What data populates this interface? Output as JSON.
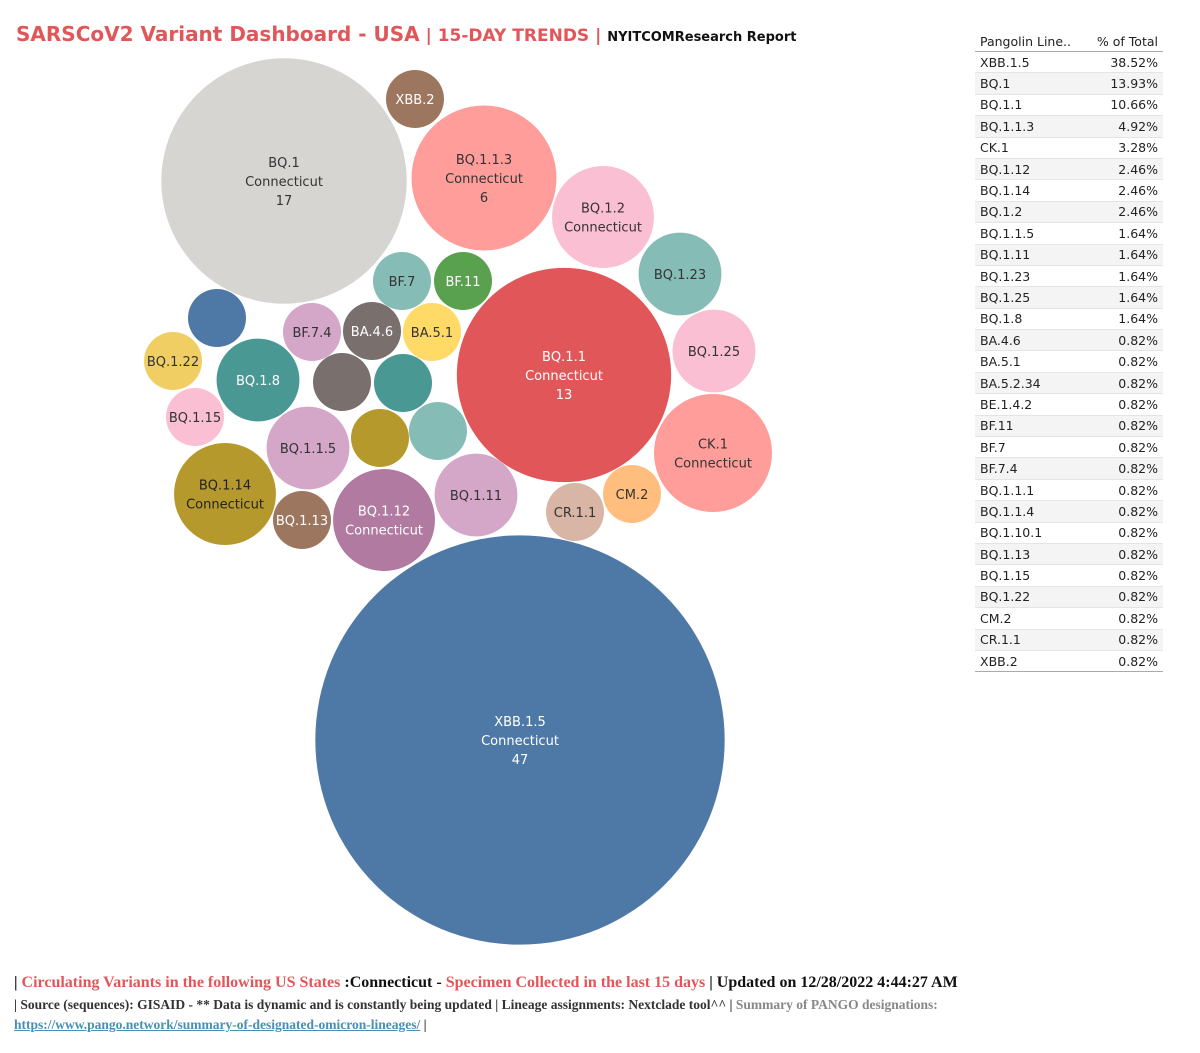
{
  "header": {
    "title": "SARSCoV2 Variant Dashboard - USA",
    "sep1": " | ",
    "trend": "15-DAY TRENDS",
    "sep2": " | ",
    "report": "NYITCOMResearch Report"
  },
  "colors": {
    "blue": "#4e79a7",
    "red": "#e15759",
    "salmon": "#ff9d9a",
    "pink": "#fabfd2",
    "teal": "#499894",
    "light_teal": "#86bcb6",
    "grey_beige": "#d7d5d2",
    "brown": "#9d7660",
    "olive": "#b6992d",
    "yellow": "#f1ce63",
    "lavender": "#d4a6c8",
    "mauve": "#b07aa1",
    "green": "#59a14f",
    "gold": "#ffda66",
    "dark_grey": "#79706e",
    "peach": "#ffbe7d",
    "tan": "#d8b5a5"
  },
  "chart_data": {
    "type": "bubble",
    "state": "Connecticut",
    "bubbles": [
      {
        "lineage": "XBB.1.5",
        "state": "Connecticut",
        "count": 47,
        "color": "#4e79a7",
        "text_color": "#ffffff"
      },
      {
        "lineage": "BQ.1",
        "state": "Connecticut",
        "count": 17,
        "color": "#d7d5d2",
        "text_color": "#333333"
      },
      {
        "lineage": "BQ.1.1",
        "state": "Connecticut",
        "count": 13,
        "color": "#e15759",
        "text_color": "#ffffff"
      },
      {
        "lineage": "BQ.1.1.3",
        "state": "Connecticut",
        "count": 6,
        "color": "#ff9d9a",
        "text_color": "#333333"
      },
      {
        "lineage": "CK.1",
        "state": "Connecticut",
        "count": 4,
        "color": "#ff9d9a",
        "text_color": "#333333"
      },
      {
        "lineage": "BQ.1.2",
        "state": "Connecticut",
        "count": 3,
        "color": "#fabfd2",
        "text_color": "#333333"
      },
      {
        "lineage": "BQ.1.12",
        "state": "Connecticut",
        "count": 3,
        "color": "#b07aa1",
        "text_color": "#ffffff"
      },
      {
        "lineage": "BQ.1.14",
        "state": "Connecticut",
        "count": 3,
        "color": "#b6992d",
        "text_color": "#222222"
      },
      {
        "lineage": "BQ.1.23",
        "count": 2,
        "color": "#86bcb6",
        "text_color": "#333333"
      },
      {
        "lineage": "BQ.1.25",
        "count": 2,
        "color": "#fabfd2",
        "text_color": "#333333"
      },
      {
        "lineage": "BQ.1.8",
        "count": 2,
        "color": "#499894",
        "text_color": "#ffffff"
      },
      {
        "lineage": "BQ.1.1.5",
        "count": 2,
        "color": "#d4a6c8",
        "text_color": "#333333"
      },
      {
        "lineage": "BQ.1.11",
        "count": 2,
        "color": "#d4a6c8",
        "text_color": "#333333"
      },
      {
        "lineage": "XBB.2",
        "count": 1,
        "color": "#9d7660",
        "text_color": "#ffffff"
      },
      {
        "lineage": "BF.7",
        "count": 1,
        "color": "#86bcb6",
        "text_color": "#333333"
      },
      {
        "lineage": "BF.11",
        "count": 1,
        "color": "#59a14f",
        "text_color": "#ffffff"
      },
      {
        "lineage": "BF.7.4",
        "count": 1,
        "color": "#d4a6c8",
        "text_color": "#333333"
      },
      {
        "lineage": "BA.4.6",
        "count": 1,
        "color": "#79706e",
        "text_color": "#ffffff"
      },
      {
        "lineage": "BA.5.1",
        "count": 1,
        "color": "#ffda66",
        "text_color": "#333333"
      },
      {
        "lineage": "BQ.1.22",
        "count": 1,
        "color": "#f1ce63",
        "text_color": "#333333"
      },
      {
        "lineage": "BQ.1.15",
        "count": 1,
        "color": "#fabfd2",
        "text_color": "#333333"
      },
      {
        "lineage": "BQ.1.13",
        "count": 1,
        "color": "#9d7660",
        "text_color": "#ffffff"
      },
      {
        "lineage": "CM.2",
        "count": 1,
        "color": "#ffbe7d",
        "text_color": "#333333"
      },
      {
        "lineage": "CR.1.1",
        "count": 1,
        "color": "#d8b5a5",
        "text_color": "#333333"
      },
      {
        "lineage": "",
        "count": 1,
        "color": "#4e79a7",
        "text_color": "#ffffff"
      },
      {
        "lineage": "",
        "count": 1,
        "color": "#79706e",
        "text_color": "#ffffff"
      },
      {
        "lineage": "",
        "count": 1,
        "color": "#499894",
        "text_color": "#ffffff"
      },
      {
        "lineage": "",
        "count": 1,
        "color": "#b6992d",
        "text_color": "#ffffff"
      },
      {
        "lineage": "",
        "count": 1,
        "color": "#86bcb6",
        "text_color": "#ffffff"
      }
    ]
  },
  "table": {
    "col_lineage": "Pangolin Line..",
    "col_pct": "% of Total",
    "rows": [
      {
        "lineage": "XBB.1.5",
        "pct": "38.52%"
      },
      {
        "lineage": "BQ.1",
        "pct": "13.93%"
      },
      {
        "lineage": "BQ.1.1",
        "pct": "10.66%"
      },
      {
        "lineage": "BQ.1.1.3",
        "pct": "4.92%"
      },
      {
        "lineage": "CK.1",
        "pct": "3.28%"
      },
      {
        "lineage": "BQ.1.12",
        "pct": "2.46%"
      },
      {
        "lineage": "BQ.1.14",
        "pct": "2.46%"
      },
      {
        "lineage": "BQ.1.2",
        "pct": "2.46%"
      },
      {
        "lineage": "BQ.1.1.5",
        "pct": "1.64%"
      },
      {
        "lineage": "BQ.1.11",
        "pct": "1.64%"
      },
      {
        "lineage": "BQ.1.23",
        "pct": "1.64%"
      },
      {
        "lineage": "BQ.1.25",
        "pct": "1.64%"
      },
      {
        "lineage": "BQ.1.8",
        "pct": "1.64%"
      },
      {
        "lineage": "BA.4.6",
        "pct": "0.82%"
      },
      {
        "lineage": "BA.5.1",
        "pct": "0.82%"
      },
      {
        "lineage": "BA.5.2.34",
        "pct": "0.82%"
      },
      {
        "lineage": "BE.1.4.2",
        "pct": "0.82%"
      },
      {
        "lineage": "BF.11",
        "pct": "0.82%"
      },
      {
        "lineage": "BF.7",
        "pct": "0.82%"
      },
      {
        "lineage": "BF.7.4",
        "pct": "0.82%"
      },
      {
        "lineage": "BQ.1.1.1",
        "pct": "0.82%"
      },
      {
        "lineage": "BQ.1.1.4",
        "pct": "0.82%"
      },
      {
        "lineage": "BQ.1.10.1",
        "pct": "0.82%"
      },
      {
        "lineage": "BQ.1.13",
        "pct": "0.82%"
      },
      {
        "lineage": "BQ.1.15",
        "pct": "0.82%"
      },
      {
        "lineage": "BQ.1.22",
        "pct": "0.82%"
      },
      {
        "lineage": "CM.2",
        "pct": "0.82%"
      },
      {
        "lineage": "CR.1.1",
        "pct": "0.82%"
      },
      {
        "lineage": "XBB.2",
        "pct": "0.82%"
      }
    ]
  },
  "footer": {
    "line1_pipe": "| ",
    "line1_red1": "Circulating Variants in the following US States ",
    "line1_state": ":Connecticut - ",
    "line1_red2": "Specimen Collected in the last 15 days",
    "line1_updated": " | Updated on 12/28/2022 4:44:27 AM",
    "line2_main": "| Source (sequences): GISAID - ** Data is dynamic and is constantly being updated | Lineage assignments: Nextclade tool^^ | ",
    "line2_grey": "Summary of PANGO designations: ",
    "link": "https://www.pango.network/summary-of-designated-omicron-lineages/",
    "line2_end": " |"
  }
}
